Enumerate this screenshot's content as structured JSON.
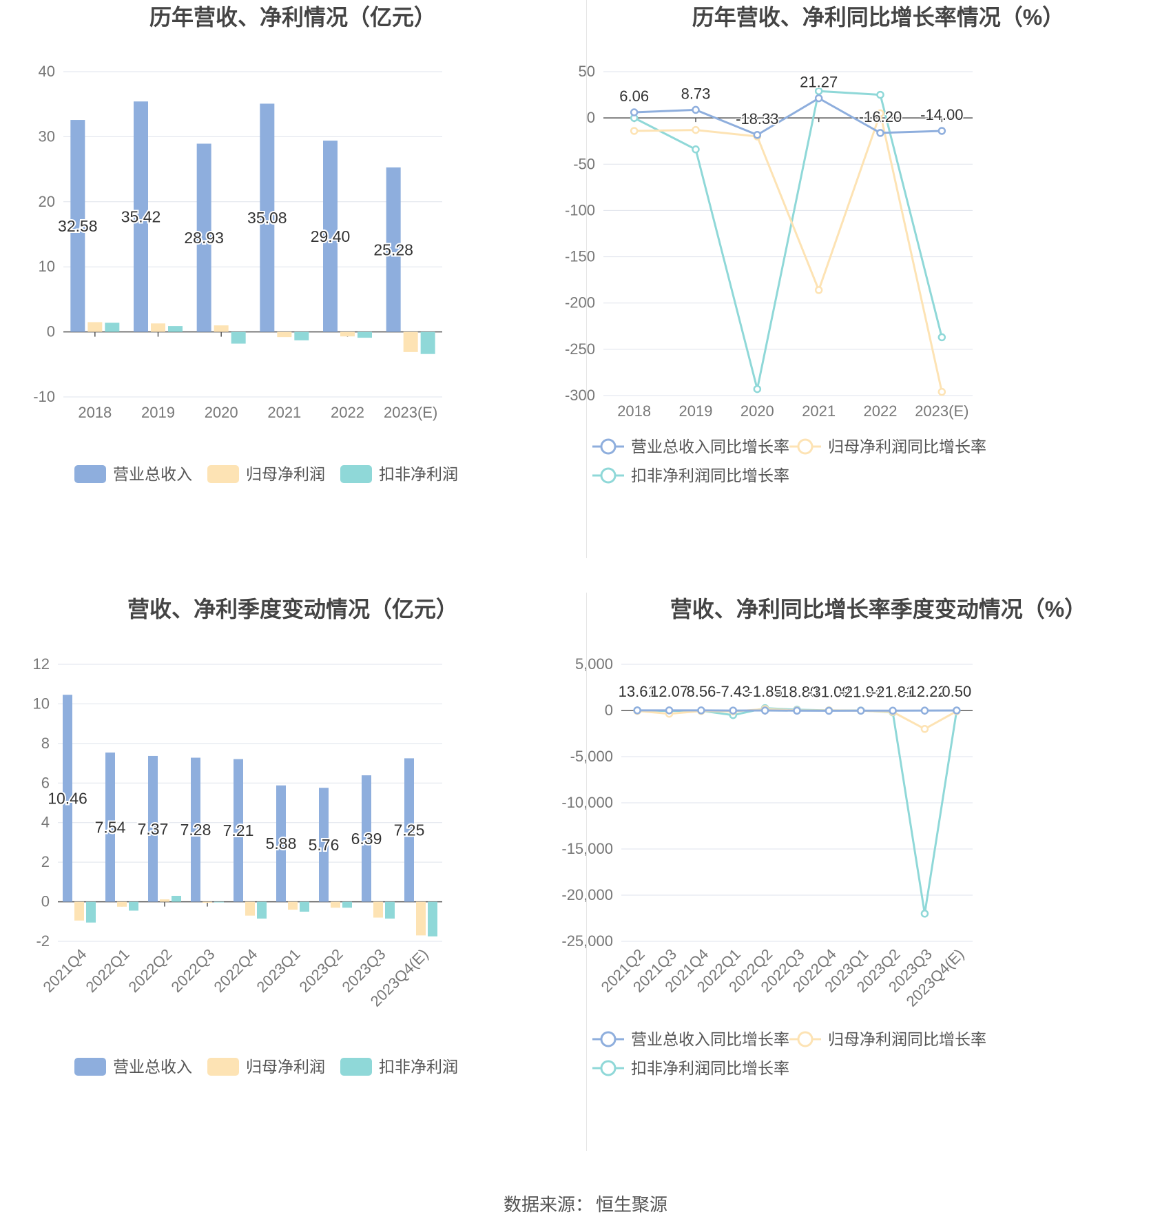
{
  "footer": {
    "label": "数据来源：",
    "source": "恒生聚源"
  },
  "chart_data": [
    {
      "type": "bar",
      "title": "历年营收、净利情况（亿元）",
      "categories": [
        "2018",
        "2019",
        "2020",
        "2021",
        "2022",
        "2023(E)"
      ],
      "ylim": [
        -10,
        40
      ],
      "yticks": [
        -10,
        0,
        10,
        20,
        30,
        40
      ],
      "grid": true,
      "legend_position": "bottom",
      "series": [
        {
          "name": "营业总收入",
          "color": "#8eaedd",
          "values": [
            32.58,
            35.42,
            28.93,
            35.08,
            29.4,
            25.28
          ],
          "labels": [
            "32.58",
            "35.42",
            "28.93",
            "35.08",
            "29.40",
            "25.28"
          ]
        },
        {
          "name": "归母净利润",
          "color": "#fde3b4",
          "values": [
            1.5,
            1.3,
            1.0,
            -0.8,
            -0.7,
            -3.1
          ]
        },
        {
          "name": "扣非净利润",
          "color": "#8fd8d8",
          "values": [
            1.4,
            0.9,
            -1.8,
            -1.3,
            -0.9,
            -3.4
          ]
        }
      ]
    },
    {
      "type": "line",
      "title": "历年营收、净利同比增长率情况（%）",
      "categories": [
        "2018",
        "2019",
        "2020",
        "2021",
        "2022",
        "2023(E)"
      ],
      "ylim": [
        -300,
        50
      ],
      "yticks": [
        -300,
        -250,
        -200,
        -150,
        -100,
        -50,
        0,
        50
      ],
      "grid": true,
      "legend_position": "bottom",
      "series": [
        {
          "name": "营业总收入同比增长率",
          "color": "#8eaedd",
          "values": [
            6.06,
            8.73,
            -18.33,
            21.27,
            -16.2,
            -14.0
          ],
          "labels": [
            "6.06",
            "8.73",
            "-18.33",
            "21.27",
            "-16.20",
            "-14.00"
          ]
        },
        {
          "name": "归母净利润同比增长率",
          "color": "#fde3b4",
          "values": [
            -14,
            -13,
            -20,
            -186,
            5,
            -296
          ]
        },
        {
          "name": "扣非净利润同比增长率",
          "color": "#8fd8d8",
          "values": [
            0,
            -34,
            -293,
            29,
            25,
            -237
          ]
        }
      ]
    },
    {
      "type": "bar",
      "title": "营收、净利季度变动情况（亿元）",
      "categories": [
        "2021Q4",
        "2022Q1",
        "2022Q2",
        "2022Q3",
        "2022Q4",
        "2023Q1",
        "2023Q2",
        "2023Q3",
        "2023Q4(E)"
      ],
      "ylim": [
        -2,
        12
      ],
      "yticks": [
        -2,
        0,
        2,
        4,
        6,
        8,
        10,
        12
      ],
      "grid": true,
      "legend_position": "bottom",
      "series": [
        {
          "name": "营业总收入",
          "color": "#8eaedd",
          "values": [
            10.46,
            7.54,
            7.37,
            7.28,
            7.21,
            5.88,
            5.76,
            6.39,
            7.25
          ],
          "labels": [
            "10.46",
            "7.54",
            "7.37",
            "7.28",
            "7.21",
            "5.88",
            "5.76",
            "6.39",
            "7.25"
          ]
        },
        {
          "name": "归母净利润",
          "color": "#fde3b4",
          "values": [
            -0.95,
            -0.25,
            0.12,
            -0.05,
            -0.7,
            -0.4,
            -0.3,
            -0.8,
            -1.7
          ]
        },
        {
          "name": "扣非净利润",
          "color": "#8fd8d8",
          "values": [
            -1.05,
            -0.45,
            0.3,
            -0.03,
            -0.85,
            -0.5,
            -0.3,
            -0.85,
            -1.75
          ]
        }
      ]
    },
    {
      "type": "line",
      "title": "营收、净利同比增长率季度变动情况（%）",
      "categories": [
        "2021Q2",
        "2021Q3",
        "2021Q4",
        "2022Q1",
        "2022Q2",
        "2022Q3",
        "2022Q4",
        "2023Q1",
        "2023Q2",
        "2023Q3",
        "2023Q4(E)"
      ],
      "ylim": [
        -25000,
        5000
      ],
      "yticks": [
        -25000,
        -20000,
        -15000,
        -10000,
        -5000,
        0,
        5000
      ],
      "ytick_labels": [
        "-25,000",
        "-20,000",
        "-15,000",
        "-10,000",
        "-5,000",
        "0",
        "5,000"
      ],
      "grid": true,
      "legend_position": "bottom",
      "series": [
        {
          "name": "营业总收入同比增长率",
          "color": "#8eaedd",
          "values": [
            13.61,
            12.07,
            8.56,
            -7.43,
            -1.85,
            -18.8,
            -31.09,
            -21.94,
            -21.81,
            -12.22,
            0.5
          ],
          "labels": [
            "13.61",
            "12.07",
            "8.56",
            "-7.43",
            "-1.85",
            "-18.80",
            "-31.09",
            "-21.94",
            "-21.81",
            "-12.22",
            "0.50"
          ]
        },
        {
          "name": "归母净利润同比增长率",
          "color": "#fde3b4",
          "values": [
            -50,
            -350,
            -60,
            -100,
            150,
            20,
            10,
            -20,
            -150,
            -2000,
            -80
          ]
        },
        {
          "name": "扣非净利润同比增长率",
          "color": "#8fd8d8",
          "values": [
            0,
            -50,
            -30,
            -500,
            250,
            80,
            10,
            0,
            -200,
            -22000,
            -20
          ]
        }
      ]
    }
  ]
}
